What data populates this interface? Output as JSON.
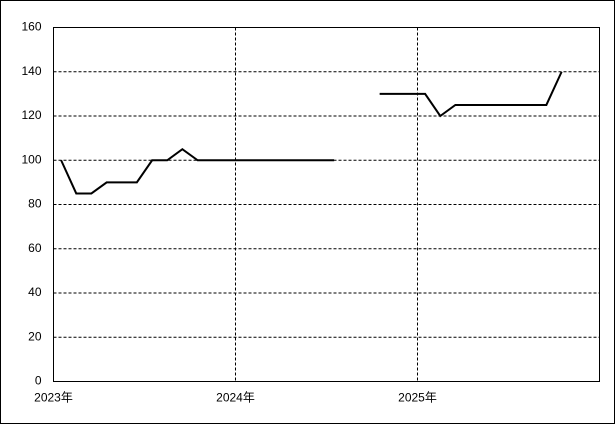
{
  "chart_data": {
    "type": "line",
    "x": [
      2023.042,
      2023.125,
      2023.208,
      2023.292,
      2023.375,
      2023.458,
      2023.542,
      2023.625,
      2023.708,
      2023.792,
      2023.875,
      2023.958,
      2024.042,
      2024.125,
      2024.208,
      2024.292,
      2024.375,
      2024.458,
      2024.542,
      2024.625,
      2024.708,
      2024.792,
      2024.875,
      2024.958,
      2025.042,
      2025.125,
      2025.208,
      2025.292,
      2025.375,
      2025.458,
      2025.542,
      2025.625,
      2025.708,
      2025.792
    ],
    "series": [
      {
        "color": "#000000",
        "values": [
          100,
          85,
          85,
          90,
          90,
          90,
          100,
          100,
          105,
          100,
          100,
          100,
          100,
          100,
          100,
          100,
          100,
          100,
          100,
          null,
          null,
          130,
          130,
          130,
          130,
          120,
          125,
          125,
          125,
          125,
          125,
          125,
          125,
          140
        ]
      }
    ],
    "xlim": [
      2023,
      2026
    ],
    "xticks": [
      {
        "value": 2023,
        "label": "2023年"
      },
      {
        "value": 2024,
        "label": "2024年"
      },
      {
        "value": 2025,
        "label": "2025年"
      }
    ],
    "ylim": [
      0,
      160
    ],
    "yticks": [
      0,
      20,
      40,
      60,
      80,
      100,
      120,
      140,
      160
    ],
    "grid": true
  }
}
